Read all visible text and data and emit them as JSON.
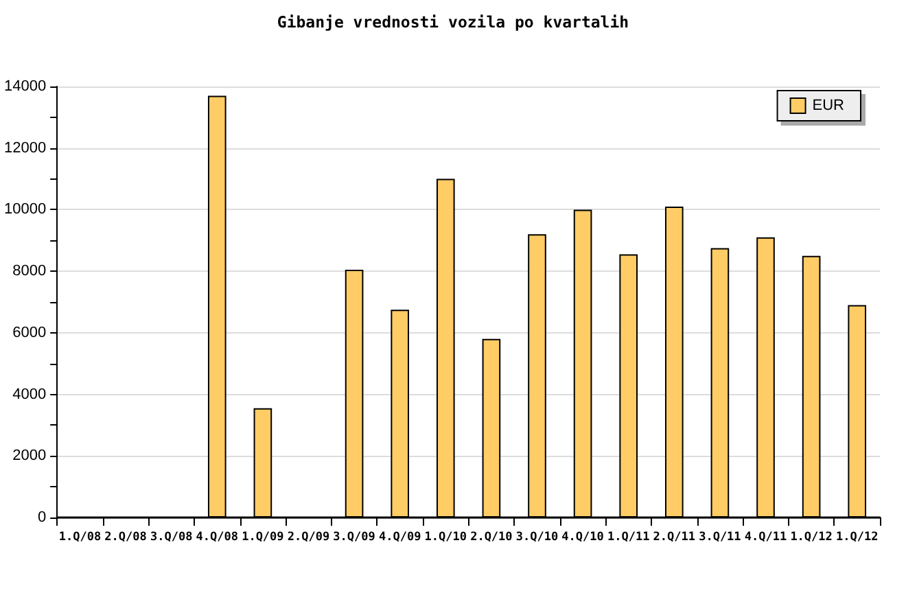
{
  "chart_data": {
    "type": "bar",
    "title": "Gibanje vrednosti vozila po kvartalih",
    "categories": [
      "1.Q/08",
      "2.Q/08",
      "3.Q/08",
      "4.Q/08",
      "1.Q/09",
      "2.Q/09",
      "3.Q/09",
      "4.Q/09",
      "1.Q/10",
      "2.Q/10",
      "3.Q/10",
      "4.Q/10",
      "1.Q/11",
      "2.Q/11",
      "3.Q/11",
      "4.Q/11",
      "1.Q/12",
      "1.Q/12"
    ],
    "series": [
      {
        "name": "EUR",
        "color": "#ffcc66",
        "values": [
          null,
          null,
          null,
          13700,
          3550,
          null,
          8050,
          6750,
          11000,
          5800,
          9200,
          10000,
          8550,
          10100,
          8750,
          9100,
          8500,
          6900
        ]
      }
    ],
    "ylim": [
      0,
      14000
    ],
    "yticks": [
      0,
      {
        "value": 1000,
        "label": null
      },
      2000,
      {
        "value": 3000,
        "label": null
      },
      4000,
      {
        "value": 5000,
        "label": null
      },
      6000,
      {
        "value": 7000,
        "label": null
      },
      8000,
      {
        "value": 9000,
        "label": null
      },
      10000,
      {
        "value": 11000,
        "label": null
      },
      12000,
      {
        "value": 13000,
        "label": null
      },
      14000
    ],
    "grid": "y",
    "legend": "top right"
  }
}
